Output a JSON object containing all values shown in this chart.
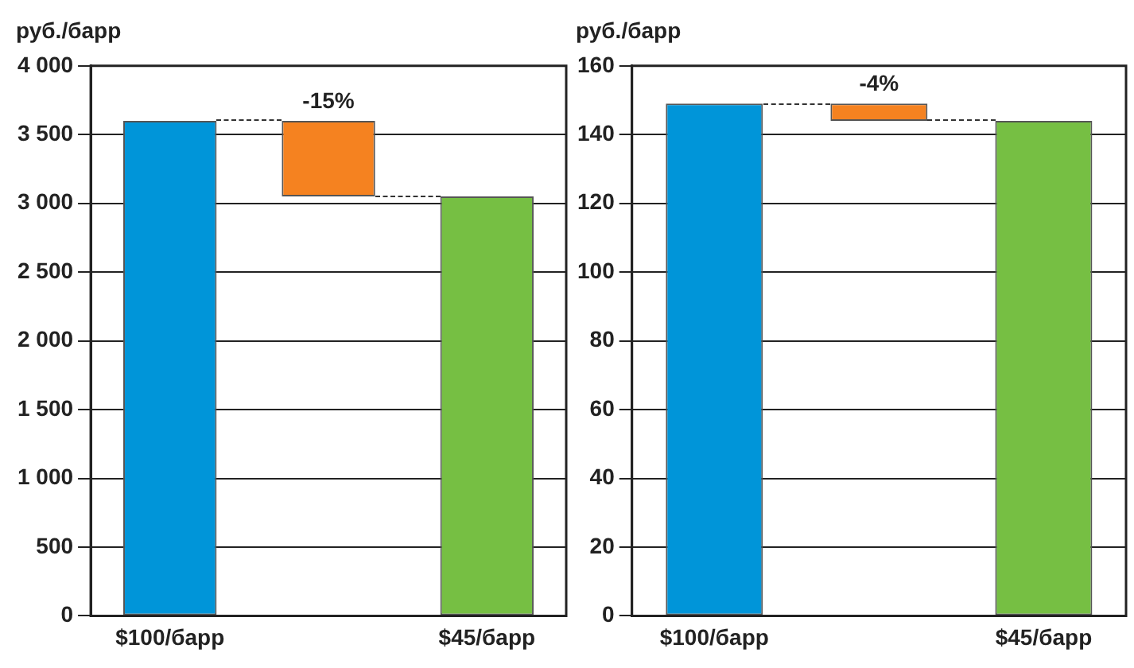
{
  "chart_data": [
    {
      "type": "bar",
      "ylabel": "руб./барр",
      "categories": [
        "$100/барр",
        null,
        "$45/барр"
      ],
      "values": [
        3600,
        -550,
        3050
      ],
      "base": [
        0,
        3600,
        0
      ],
      "colors": [
        "#0095d9",
        "#f58220",
        "#76bf43"
      ],
      "annotations": [
        {
          "text": "-15%",
          "y": 3600
        }
      ],
      "ylim": [
        0,
        4000
      ],
      "yticks": [
        {
          "value": 0,
          "label": "0"
        },
        {
          "value": 500,
          "label": "500"
        },
        {
          "value": 1000,
          "label": "1 000"
        },
        {
          "value": 1500,
          "label": "1 500"
        },
        {
          "value": 2000,
          "label": "2 000"
        },
        {
          "value": 2500,
          "label": "2 500"
        },
        {
          "value": 3000,
          "label": "3 000"
        },
        {
          "value": 3500,
          "label": "3 500"
        },
        {
          "value": 4000,
          "label": "4 000"
        }
      ],
      "grid": "y",
      "legend": false
    },
    {
      "type": "bar",
      "ylabel": "руб./барр",
      "categories": [
        "$100/барр",
        null,
        "$45/барр"
      ],
      "values": [
        149,
        -5,
        144
      ],
      "base": [
        0,
        149,
        0
      ],
      "colors": [
        "#0095d9",
        "#f58220",
        "#76bf43"
      ],
      "annotations": [
        {
          "text": "-4%",
          "y": 149
        }
      ],
      "ylim": [
        0,
        160
      ],
      "yticks": [
        0,
        20,
        40,
        60,
        80,
        100,
        120,
        140,
        160
      ],
      "grid": "y",
      "legend": false
    }
  ]
}
